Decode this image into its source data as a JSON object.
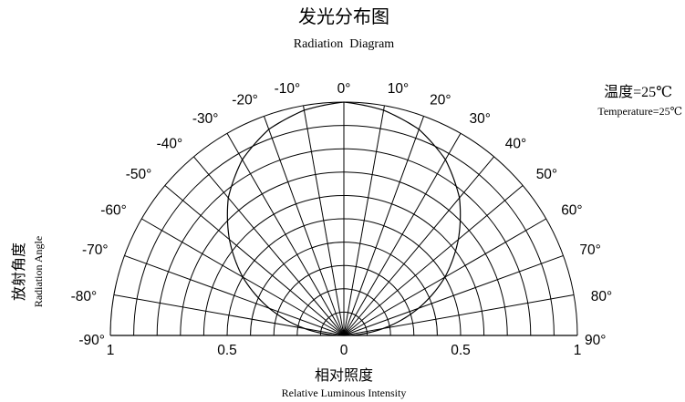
{
  "title": "发光分布图",
  "subtitle": "Radiation  Diagram",
  "temperature_label_cn": "温度=25℃",
  "temperature_label_en": "Temperature=25℃",
  "ylabel_cn": "放射角度",
  "ylabel_en": "Radiation Angle",
  "xlabel_cn": "相对照度",
  "xlabel_en": "Relative Luminous Intensity",
  "chart_data": {
    "type": "line",
    "polar": true,
    "title": "发光分布图",
    "subtitle": "Radiation  Diagram",
    "xlabel": "Relative Luminous Intensity",
    "ylabel": "Radiation Angle",
    "angle_ticks": [
      {
        "angle": -90,
        "label": "-90°"
      },
      {
        "angle": -80,
        "label": "-80°"
      },
      {
        "angle": -70,
        "label": "-70°"
      },
      {
        "angle": -60,
        "label": "-60°"
      },
      {
        "angle": -50,
        "label": "-50°"
      },
      {
        "angle": -40,
        "label": "-40°"
      },
      {
        "angle": -30,
        "label": "-30°"
      },
      {
        "angle": -20,
        "label": "-20°"
      },
      {
        "angle": -10,
        "label": "-10°"
      },
      {
        "angle": 0,
        "label": "0°"
      },
      {
        "angle": 10,
        "label": "10°"
      },
      {
        "angle": 20,
        "label": "20°"
      },
      {
        "angle": 30,
        "label": "30°"
      },
      {
        "angle": 40,
        "label": "40°"
      },
      {
        "angle": 50,
        "label": "50°"
      },
      {
        "angle": 60,
        "label": "60°"
      },
      {
        "angle": 70,
        "label": "70°"
      },
      {
        "angle": 80,
        "label": "80°"
      },
      {
        "angle": 90,
        "label": "90°"
      }
    ],
    "radial_ticks": [
      {
        "value": -1,
        "label": "1"
      },
      {
        "value": -0.5,
        "label": "0.5"
      },
      {
        "value": 0,
        "label": "0"
      },
      {
        "value": 0.5,
        "label": "0.5"
      },
      {
        "value": 1,
        "label": "1"
      }
    ],
    "radial_grid": [
      0.1,
      0.2,
      0.3,
      0.4,
      0.5,
      0.6,
      0.7,
      0.8,
      0.9,
      1.0
    ],
    "angle_range": [
      -90,
      90
    ],
    "radial_range": [
      0,
      1
    ],
    "grid": true,
    "series": [
      {
        "angles": [
          -90,
          -80,
          -70,
          -60,
          -50,
          -40,
          -30,
          -20,
          -10,
          0,
          10,
          20,
          30,
          40,
          50,
          60,
          70,
          80,
          90
        ],
        "values": [
          0.0,
          0.17,
          0.34,
          0.5,
          0.64,
          0.77,
          0.87,
          0.94,
          0.98,
          1.0,
          0.98,
          0.94,
          0.87,
          0.77,
          0.64,
          0.5,
          0.34,
          0.17,
          0.0
        ]
      }
    ]
  }
}
